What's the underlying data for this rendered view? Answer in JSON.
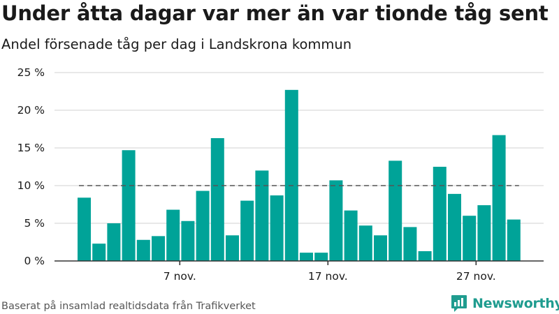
{
  "header": {
    "title": "Under åtta dagar var mer än var tionde tåg sent",
    "subtitle": "Andel försenade tåg per dag i Landskrona kommun"
  },
  "footer": {
    "source": "Baserat på insamlad realtidsdata från Trafikverket",
    "brand": "Newsworthy"
  },
  "colors": {
    "bar": "#00a398",
    "reference_line": "#555555",
    "brand": "#1f9c8f",
    "grid": "#d9d9d9"
  },
  "chart_data": {
    "type": "bar",
    "title": "Under åtta dagar var mer än var tionde tåg sent",
    "subtitle": "Andel försenade tåg per dag i Landskrona kommun",
    "xlabel": "",
    "ylabel": "",
    "x": [
      1,
      2,
      3,
      4,
      5,
      6,
      7,
      8,
      9,
      10,
      11,
      12,
      13,
      14,
      15,
      16,
      17,
      18,
      19,
      20,
      21,
      22,
      23,
      24,
      25,
      26,
      27,
      28,
      29,
      30
    ],
    "x_unit": "november",
    "values": [
      8.4,
      2.3,
      5.0,
      14.7,
      2.8,
      3.3,
      6.8,
      5.3,
      9.3,
      16.3,
      3.4,
      8.0,
      12.0,
      8.7,
      22.7,
      1.1,
      1.1,
      10.7,
      6.7,
      4.7,
      3.4,
      13.3,
      4.5,
      1.3,
      12.5,
      8.9,
      6.0,
      7.4,
      16.7,
      5.5
    ],
    "ylim": [
      0,
      25
    ],
    "y_ticks": [
      0,
      5,
      10,
      15,
      20,
      25
    ],
    "y_tick_labels": [
      "0 %",
      "5 %",
      "10 %",
      "15 %",
      "20 %",
      "25 %"
    ],
    "x_ticks": [
      7,
      17,
      27
    ],
    "x_tick_labels": [
      "7 nov.",
      "17 nov.",
      "27 nov."
    ],
    "reference_line": 10,
    "grid": true,
    "legend": "none"
  }
}
